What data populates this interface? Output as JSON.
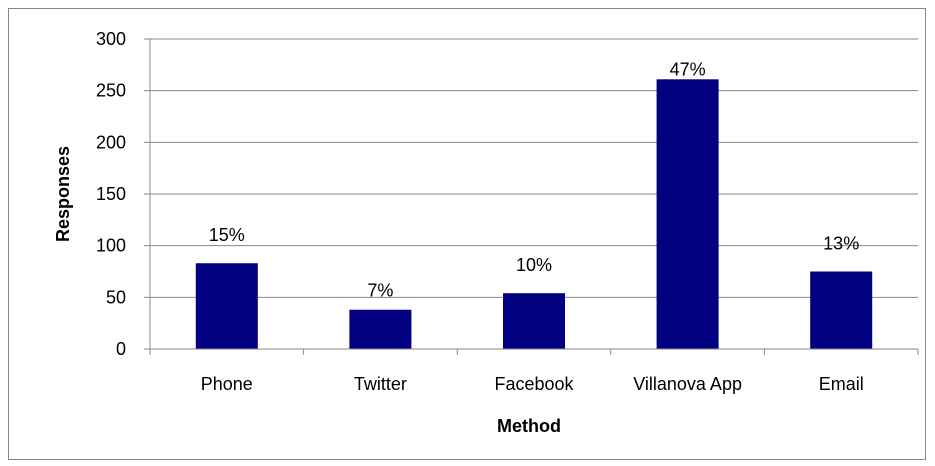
{
  "chart_data": {
    "type": "bar",
    "title": "",
    "xlabel": "Method",
    "ylabel": "Responses",
    "categories": [
      "Phone",
      "Twitter",
      "Facebook",
      "Villanova App",
      "Email"
    ],
    "values": [
      83,
      38,
      54,
      261,
      75
    ],
    "data_labels": [
      "15%",
      "7%",
      "10%",
      "47%",
      "13%"
    ],
    "ylim": [
      0,
      300
    ],
    "yticks": [
      "0",
      "50",
      "100",
      "150",
      "200",
      "250",
      "300"
    ],
    "grid": true,
    "legend": "none",
    "bar_color": "#000080",
    "grid_color": "#878787"
  }
}
